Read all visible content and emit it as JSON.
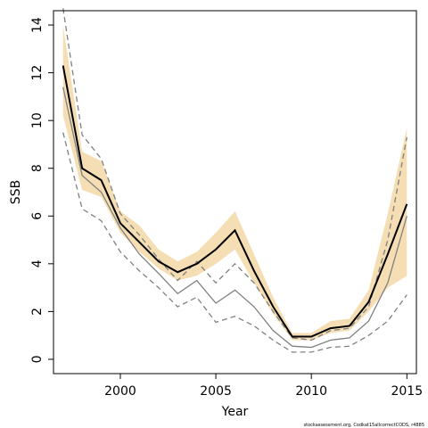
{
  "chart_data": {
    "type": "line",
    "xlabel": "Year",
    "ylabel": "SSB",
    "xlim": [
      1996.5,
      2015.5
    ],
    "ylim": [
      -0.6,
      14.6
    ],
    "xticks": [
      2000,
      2005,
      2010,
      2015
    ],
    "yticks": [
      0,
      2,
      4,
      6,
      8,
      10,
      12,
      14
    ],
    "grid": false,
    "footer": "stockassessment.org, Codkat15allcorrectCODS, r4885",
    "colors": {
      "band": "#f5deb3",
      "estimate": "#000000",
      "retro": "#808080"
    },
    "x": [
      1997,
      1998,
      1999,
      2000,
      2001,
      2002,
      2003,
      2004,
      2005,
      2006,
      2007,
      2008,
      2009,
      2010,
      2011,
      2012,
      2013,
      2014,
      2015
    ],
    "series": [
      {
        "role": "band",
        "lower": [
          10.2,
          7.1,
          6.8,
          5.3,
          4.5,
          3.8,
          3.3,
          3.5,
          4.0,
          4.6,
          3.2,
          1.9,
          0.8,
          0.8,
          1.1,
          1.2,
          2.0,
          3.0,
          3.5
        ],
        "upper": [
          14.0,
          8.7,
          8.3,
          6.2,
          5.6,
          4.6,
          4.1,
          4.5,
          5.3,
          6.2,
          4.4,
          2.6,
          1.1,
          1.1,
          1.6,
          1.7,
          2.9,
          6.1,
          9.7
        ]
      },
      {
        "role": "estimate",
        "style": "solid-black",
        "values": [
          12.3,
          8.0,
          7.5,
          5.7,
          4.9,
          4.1,
          3.65,
          4.0,
          4.6,
          5.4,
          3.7,
          2.2,
          0.95,
          0.95,
          1.3,
          1.4,
          2.4,
          4.4,
          6.5
        ]
      },
      {
        "role": "retro-upper",
        "style": "dashed-gray",
        "values": [
          14.7,
          9.4,
          8.4,
          6.1,
          5.2,
          4.2,
          3.3,
          4.1,
          3.2,
          4.0,
          3.2,
          2.0,
          0.9,
          0.8,
          1.2,
          1.3,
          2.2,
          5.0,
          9.3
        ]
      },
      {
        "role": "retro-mid",
        "style": "solid-gray",
        "values": [
          11.4,
          7.7,
          7.0,
          5.5,
          4.4,
          3.6,
          2.75,
          3.3,
          2.35,
          2.9,
          2.2,
          1.2,
          0.55,
          0.5,
          0.8,
          0.9,
          1.6,
          3.2,
          6.0
        ]
      },
      {
        "role": "retro-lower",
        "style": "dashed-gray",
        "values": [
          9.5,
          6.3,
          5.8,
          4.5,
          3.7,
          3.0,
          2.2,
          2.6,
          1.55,
          1.8,
          1.4,
          0.8,
          0.3,
          0.3,
          0.5,
          0.55,
          1.0,
          1.6,
          2.7
        ]
      }
    ]
  }
}
